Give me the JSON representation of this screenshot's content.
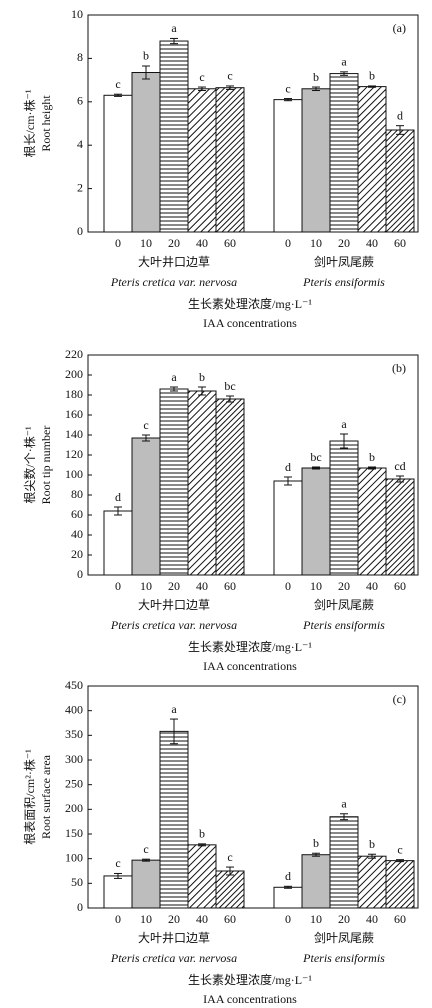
{
  "chart_data": [
    {
      "type": "bar",
      "title": "(a)",
      "ylabel": "根长/cm·株⁻¹",
      "ylabel_en": "Root height",
      "xlabel": "生长素处理浓度/mg·L⁻¹",
      "xlabel_en": "IAA concentrations",
      "categories": [
        "0",
        "10",
        "20",
        "40",
        "60"
      ],
      "bar_fills": [
        "#ffffff",
        "#bdbdbd",
        "url(#hlines)",
        "url(#diag1)",
        "url(#diag2)"
      ],
      "ylim": [
        0,
        10
      ],
      "yticks": [
        0,
        2,
        4,
        6,
        8,
        10
      ],
      "series": [
        {
          "name": "大叶井口边草",
          "subtitle": "Pteris cretica var. nervosa",
          "values": [
            6.3,
            7.35,
            8.8,
            6.6,
            6.65
          ],
          "errors": [
            0.05,
            0.3,
            0.12,
            0.08,
            0.08
          ],
          "letters": [
            "c",
            "b",
            "a",
            "c",
            "c"
          ]
        },
        {
          "name": "剑叶凤尾蕨",
          "subtitle": "Pteris ensiformis",
          "values": [
            6.1,
            6.6,
            7.3,
            6.7,
            4.7
          ],
          "errors": [
            0.05,
            0.08,
            0.08,
            0.03,
            0.2
          ],
          "letters": [
            "c",
            "b",
            "a",
            "b",
            "d"
          ]
        }
      ]
    },
    {
      "type": "bar",
      "title": "(b)",
      "ylabel": "根尖数/个·株⁻¹",
      "ylabel_en": "Root tip number",
      "xlabel": "生长素处理浓度/mg·L⁻¹",
      "xlabel_en": "IAA concentrations",
      "categories": [
        "0",
        "10",
        "20",
        "40",
        "60"
      ],
      "bar_fills": [
        "#ffffff",
        "#bdbdbd",
        "url(#hlines)",
        "url(#diag1)",
        "url(#diag2)"
      ],
      "ylim": [
        0,
        220
      ],
      "yticks": [
        0,
        20,
        40,
        60,
        80,
        100,
        120,
        140,
        160,
        180,
        200,
        220
      ],
      "series": [
        {
          "name": "大叶井口边草",
          "subtitle": "Pteris cretica var. nervosa",
          "values": [
            64,
            137,
            186,
            184,
            176
          ],
          "errors": [
            4,
            3,
            2,
            4,
            3
          ],
          "letters": [
            "d",
            "c",
            "a",
            "b",
            "bc"
          ]
        },
        {
          "name": "剑叶凤尾蕨",
          "subtitle": "Pteris ensiformis",
          "values": [
            94,
            107,
            134,
            107,
            96
          ],
          "errors": [
            4,
            1,
            7,
            1,
            3
          ],
          "letters": [
            "d",
            "bc",
            "a",
            "b",
            "cd"
          ]
        }
      ]
    },
    {
      "type": "bar",
      "title": "(c)",
      "ylabel": "根表面积/cm²·株⁻¹",
      "ylabel_en": "Root surface area",
      "xlabel": "生长素处理浓度/mg·L⁻¹",
      "xlabel_en": "IAA concentrations",
      "categories": [
        "0",
        "10",
        "20",
        "40",
        "60"
      ],
      "bar_fills": [
        "#ffffff",
        "#bdbdbd",
        "url(#hlines)",
        "url(#diag1)",
        "url(#diag2)"
      ],
      "ylim": [
        0,
        450
      ],
      "yticks": [
        0,
        50,
        100,
        150,
        200,
        250,
        300,
        350,
        400,
        450
      ],
      "series": [
        {
          "name": "大叶井口边草",
          "subtitle": "Pteris cretica var. nervosa",
          "values": [
            65,
            97,
            358,
            128,
            75
          ],
          "errors": [
            5,
            2,
            25,
            2,
            8
          ],
          "letters": [
            "c",
            "c",
            "a",
            "b",
            "c"
          ]
        },
        {
          "name": "剑叶凤尾蕨",
          "subtitle": "Pteris ensiformis",
          "values": [
            42,
            108,
            185,
            105,
            96
          ],
          "errors": [
            2,
            3,
            6,
            4,
            2
          ],
          "letters": [
            "d",
            "b",
            "a",
            "b",
            "c"
          ]
        }
      ]
    }
  ]
}
